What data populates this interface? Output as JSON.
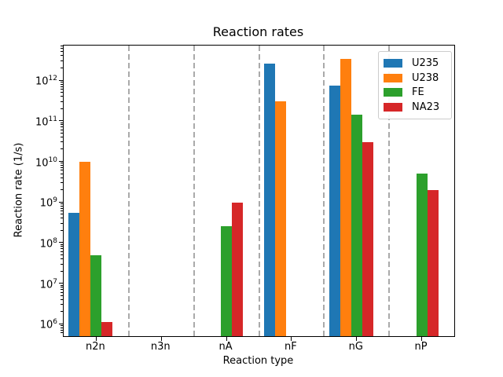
{
  "chart_data": {
    "type": "bar",
    "title": "Reaction rates",
    "xlabel": "Reaction type",
    "ylabel": "Reaction rate (1/s)",
    "categories": [
      "n2n",
      "n3n",
      "nA",
      "nF",
      "nG",
      "nP"
    ],
    "series": [
      {
        "name": "U235",
        "color": "#1f77b4",
        "values": [
          550000000.0,
          0,
          0,
          2500000000000.0,
          750000000000.0,
          0
        ]
      },
      {
        "name": "U238",
        "color": "#ff7f0e",
        "values": [
          10000000000.0,
          0,
          0,
          300000000000.0,
          3300000000000.0,
          0
        ]
      },
      {
        "name": "FE",
        "color": "#2ca02c",
        "values": [
          50000000.0,
          0,
          250000000.0,
          0,
          140000000000.0,
          5000000000.0
        ]
      },
      {
        "name": "NA23",
        "color": "#d62728",
        "values": [
          1100000.0,
          0,
          950000000.0,
          0,
          30000000000.0,
          2000000000.0
        ]
      }
    ],
    "yscale": "log",
    "ylim": [
      500000.0,
      7100000000000.0
    ],
    "y_major_tick_exponents": [
      6,
      7,
      8,
      9,
      10,
      11,
      12
    ],
    "grid": false,
    "group_separators": true,
    "separator_color": "#aaaaaa",
    "separator_style": "dashed",
    "legend": {
      "position": "upper right",
      "entries": [
        "U235",
        "U238",
        "FE",
        "NA23"
      ]
    },
    "axis_color": "#000000",
    "background_color": "#ffffff"
  }
}
